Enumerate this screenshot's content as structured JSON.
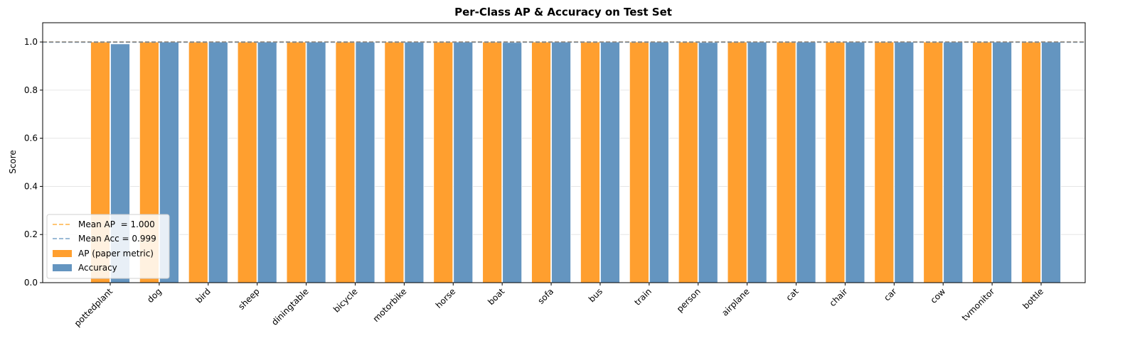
{
  "chart_data": {
    "type": "bar",
    "title": "Per-Class AP & Accuracy on Test Set",
    "xlabel": "",
    "ylabel": "Score",
    "ylim": [
      0,
      1.08
    ],
    "yticks": [
      "0.0",
      "0.2",
      "0.4",
      "0.6",
      "0.8",
      "1.0"
    ],
    "grid": "horizontal",
    "legend_position": "lower-left",
    "categories": [
      "pottedplant",
      "dog",
      "bird",
      "sheep",
      "diningtable",
      "bicycle",
      "motorbike",
      "horse",
      "boat",
      "sofa",
      "bus",
      "train",
      "person",
      "airplane",
      "cat",
      "chair",
      "car",
      "cow",
      "tvmonitor",
      "bottle"
    ],
    "series": [
      {
        "name": "AP (paper metric)",
        "color": "#ff9f2f",
        "values": [
          1.0,
          1.0,
          1.0,
          1.0,
          1.0,
          1.0,
          1.0,
          1.0,
          1.0,
          1.0,
          1.0,
          1.0,
          1.0,
          1.0,
          1.0,
          1.0,
          1.0,
          1.0,
          1.0,
          1.0
        ]
      },
      {
        "name": "Accuracy",
        "color": "#6495c0",
        "values": [
          0.992,
          1.0,
          1.0,
          1.0,
          1.0,
          1.0,
          1.0,
          1.0,
          0.998,
          1.0,
          1.0,
          1.0,
          0.998,
          1.0,
          1.0,
          1.0,
          1.0,
          1.0,
          1.0,
          1.0
        ]
      }
    ],
    "reference_lines": [
      {
        "label": "Mean AP  = 1.000",
        "value": 1.0,
        "color": "#ffb347"
      },
      {
        "label": "Mean Acc = 0.999",
        "value": 0.999,
        "color": "#7aa3c8"
      }
    ]
  }
}
